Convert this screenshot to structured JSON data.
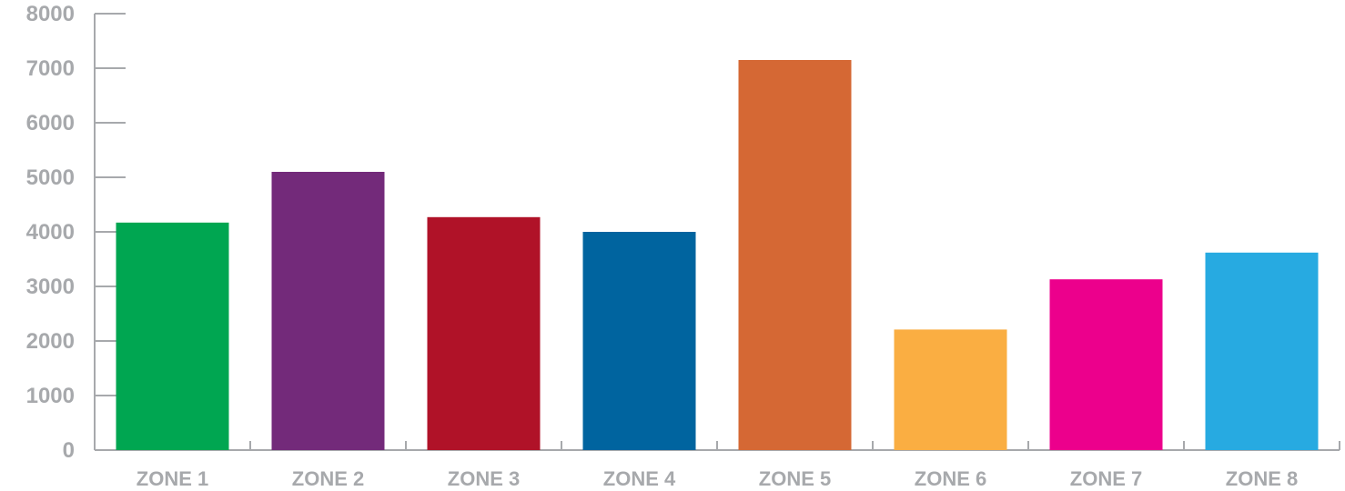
{
  "chart_data": {
    "type": "bar",
    "title": "",
    "xlabel": "",
    "ylabel": "",
    "categories": [
      "ZONE 1",
      "ZONE 2",
      "ZONE 3",
      "ZONE 4",
      "ZONE 5",
      "ZONE 6",
      "ZONE 7",
      "ZONE 8"
    ],
    "values": [
      4170,
      5100,
      4270,
      4000,
      7150,
      2210,
      3130,
      3620
    ],
    "colors": [
      "#00a651",
      "#732a7a",
      "#b01228",
      "#00649f",
      "#d56834",
      "#faae42",
      "#ec008c",
      "#27aae1"
    ],
    "ylim": [
      0,
      8000
    ],
    "yticks": [
      0,
      1000,
      2000,
      3000,
      4000,
      5000,
      6000,
      7000,
      8000
    ],
    "grid": false,
    "legend": "none",
    "axis_color": "#a7a9ac"
  }
}
